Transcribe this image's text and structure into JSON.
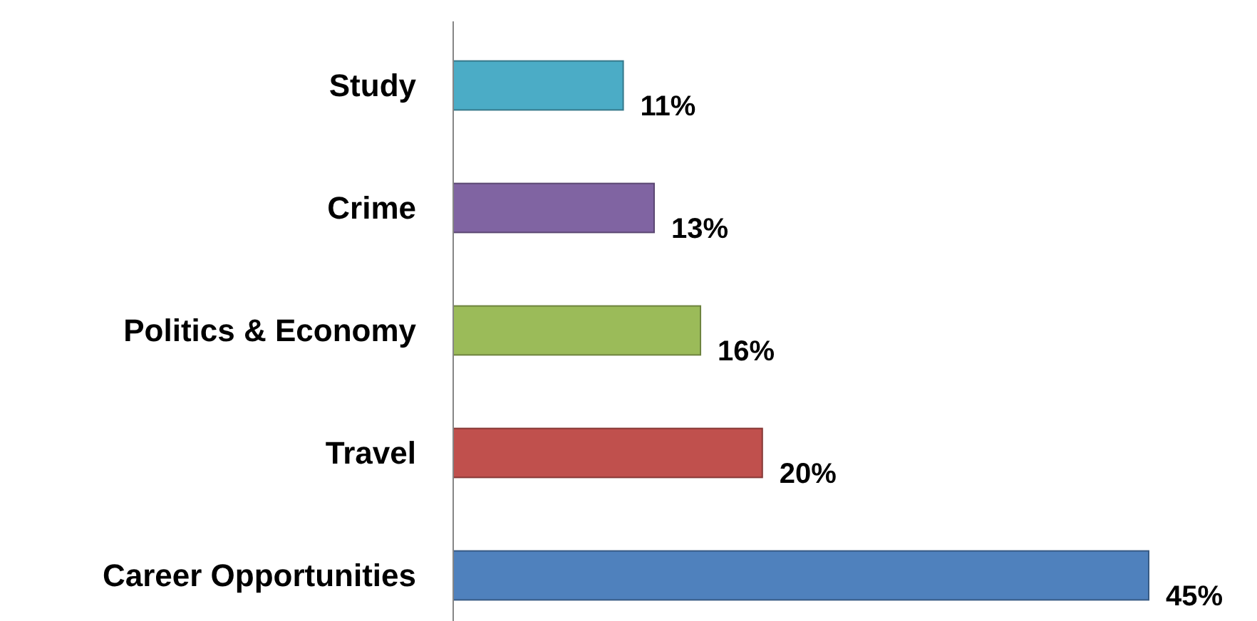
{
  "chart_data": {
    "type": "bar",
    "orientation": "horizontal",
    "categories": [
      "Study",
      "Crime",
      "Politics & Economy",
      "Travel",
      "Career Opportunities"
    ],
    "values": [
      11,
      13,
      16,
      20,
      45
    ],
    "colors": [
      "#4bacc6",
      "#8064a2",
      "#9bbb59",
      "#c0504d",
      "#4f81bd"
    ],
    "value_labels": [
      "11%",
      "13%",
      "16%",
      "20%",
      "45%"
    ]
  }
}
